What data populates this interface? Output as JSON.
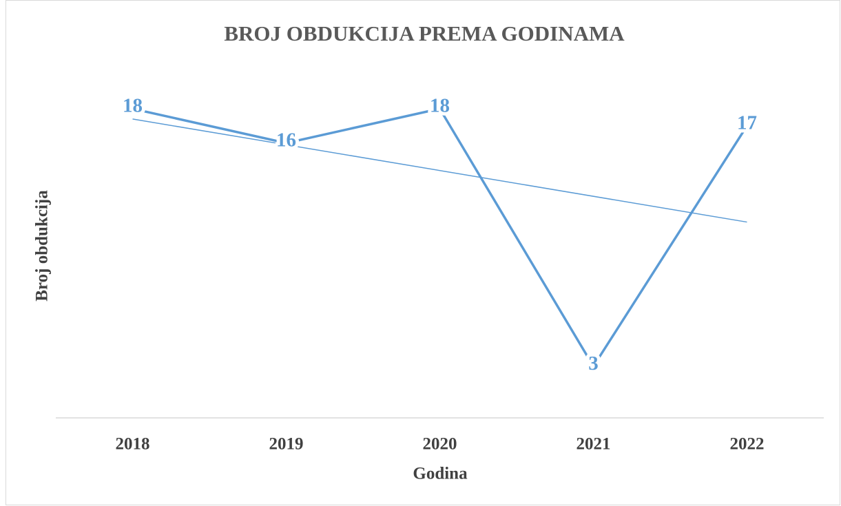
{
  "chart_data": {
    "type": "line",
    "title": "BROJ OBDUKCIJA PREMA GODINAMA",
    "x_label": "Godina",
    "y_label": "Broj obdukcija",
    "categories": [
      "2018",
      "2019",
      "2020",
      "2021",
      "2022"
    ],
    "values": [
      18,
      16,
      18,
      3,
      17
    ],
    "color": "#5b9bd5",
    "ylim": [
      0,
      20
    ],
    "grid": false,
    "trendline": "linear",
    "data_labels": true
  }
}
